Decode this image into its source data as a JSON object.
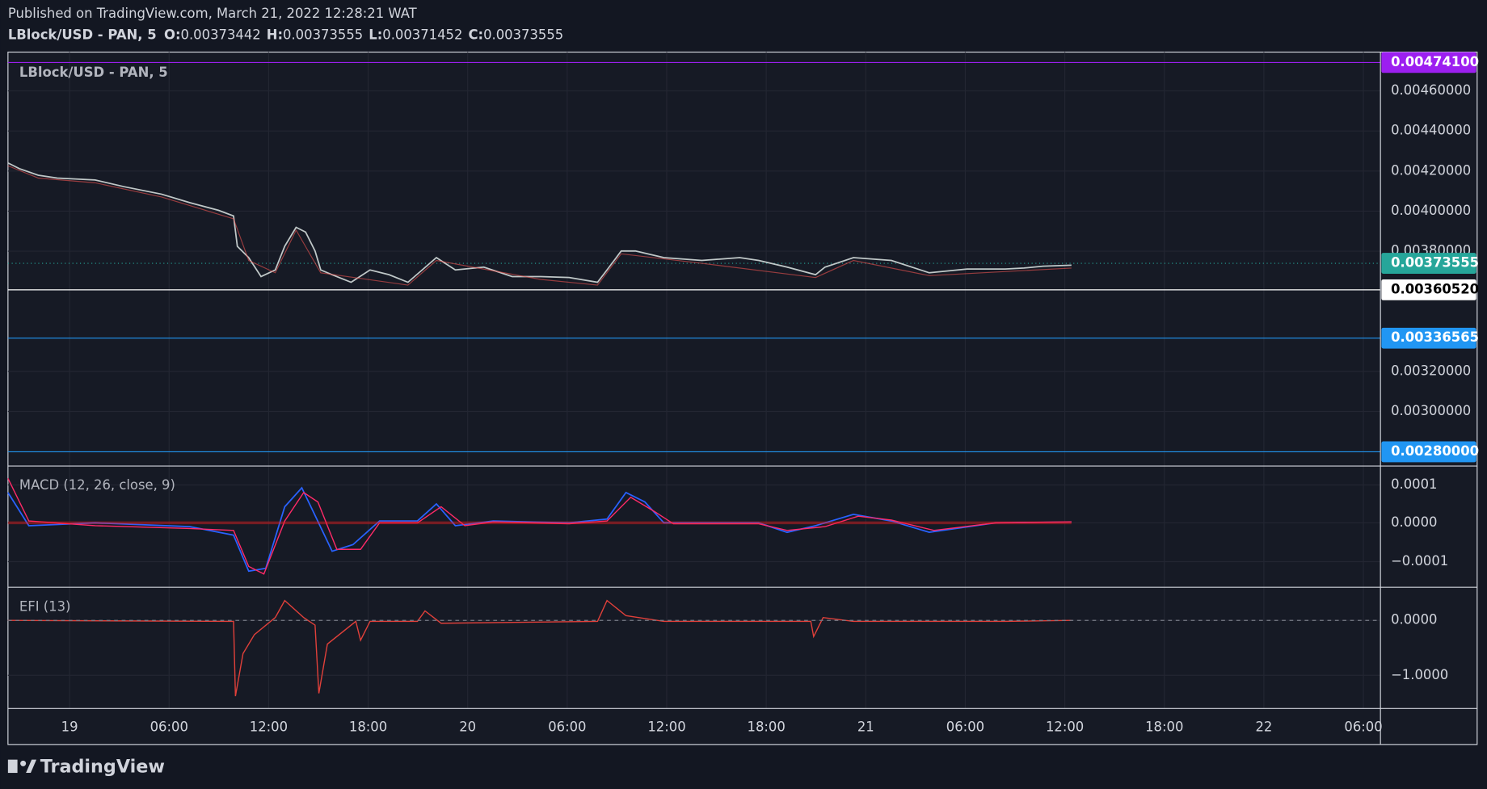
{
  "header": {
    "published": "Published on TradingView.com, March 21, 2022 12:28:21 WAT",
    "symbol": "LBlock/USD - PAN, 5",
    "ohlc": [
      {
        "label": "O:",
        "value": "0.00373442"
      },
      {
        "label": "H:",
        "value": "0.00373555"
      },
      {
        "label": "L:",
        "value": "0.00371452"
      },
      {
        "label": "C:",
        "value": "0.00373555"
      }
    ]
  },
  "pane": {
    "title": "LBlock/USD - PAN, 5"
  },
  "price_axis": {
    "ticks": [
      "0.00460000",
      "0.00440000",
      "0.00420000",
      "0.00400000",
      "0.00380000",
      "0.00320000",
      "0.00300000"
    ]
  },
  "price_labels": [
    {
      "text": "0.00474100",
      "color": "#9c1ff0",
      "text_color": "#ffffff",
      "line": "#9c1ff0"
    },
    {
      "text": "0.00373555",
      "color": "#26a69a",
      "text_color": "#ffffff",
      "line": "#26a69a"
    },
    {
      "text": "0.00360520",
      "color": "#ffffff",
      "text_color": "#000000",
      "line": "#ffffff"
    },
    {
      "text": "0.00336565",
      "color": "#2196f3",
      "text_color": "#ffffff",
      "line": "#2196f3"
    },
    {
      "text": "0.00280000",
      "color": "#2196f3",
      "text_color": "#ffffff",
      "line": "#2196f3"
    }
  ],
  "macd": {
    "title": "MACD (12, 26, close, 9)",
    "ticks": [
      "0.0001",
      "0.0000",
      "−0.0001"
    ]
  },
  "efi": {
    "title": "EFI (13)",
    "ticks": [
      "0.0000",
      "−1.0000"
    ]
  },
  "time_axis": [
    "19",
    "06:00",
    "12:00",
    "18:00",
    "20",
    "06:00",
    "12:00",
    "18:00",
    "21",
    "06:00",
    "12:00",
    "18:00",
    "22",
    "06:00"
  ],
  "footer": {
    "brand": "TradingView"
  }
}
